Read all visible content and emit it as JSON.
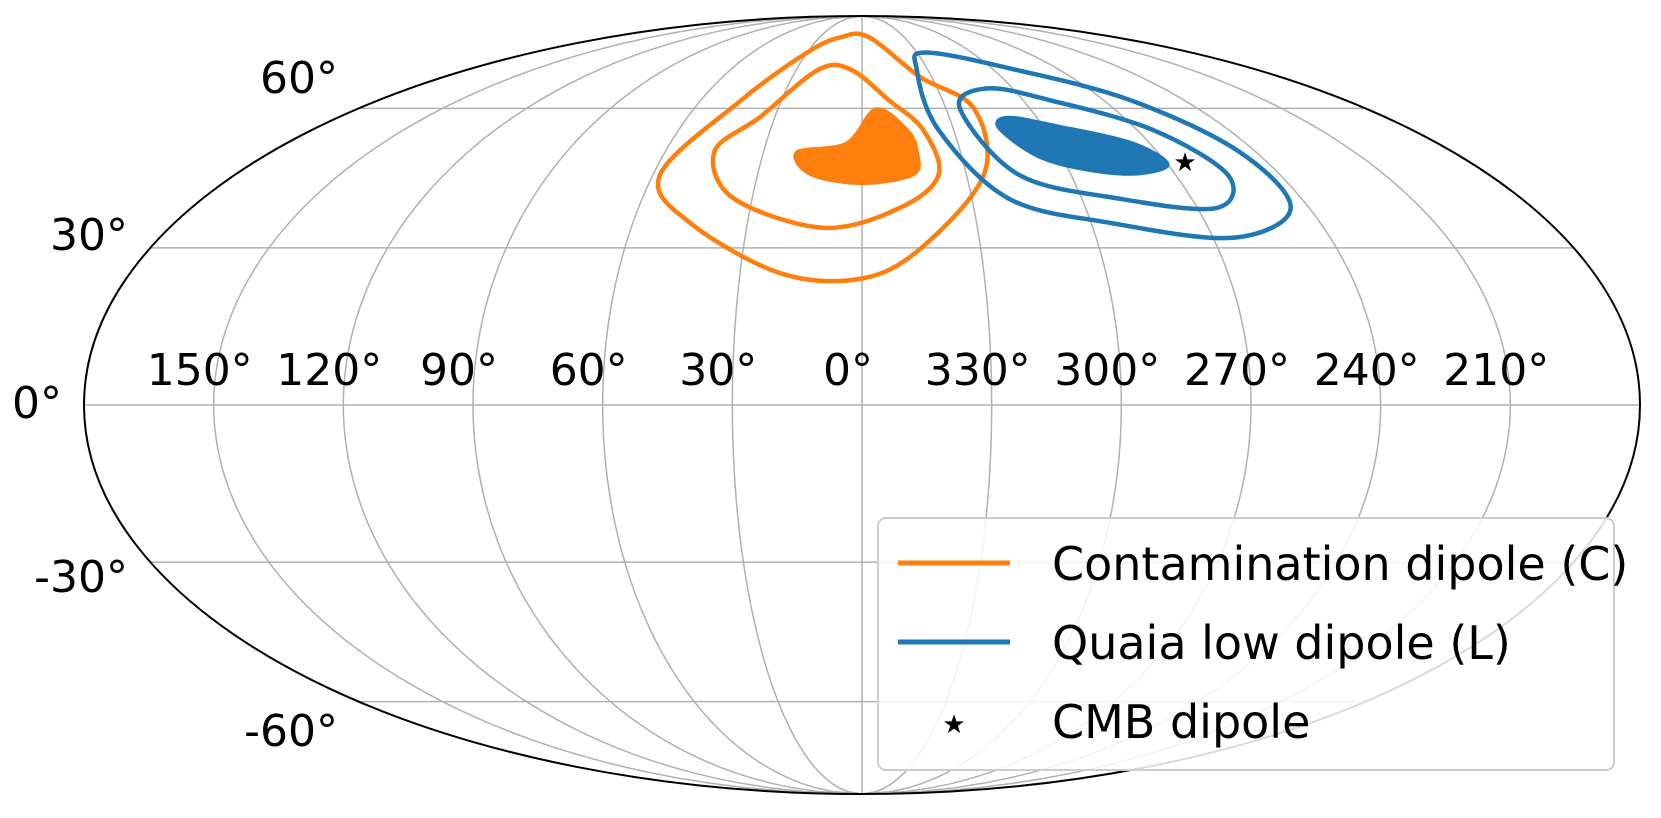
{
  "chart_data": {
    "type": "contour-skymap",
    "projection": "mollweide",
    "title": "",
    "xlabel": "",
    "ylabel": "",
    "grid": true,
    "lon_ticks": [
      "150°",
      "120°",
      "90°",
      "60°",
      "30°",
      "0°",
      "330°",
      "300°",
      "270°",
      "240°",
      "210°"
    ],
    "lat_ticks": [
      "60°",
      "30°",
      "0°",
      "-30°",
      "-60°"
    ],
    "legend_position": "lower-right",
    "series": [
      {
        "name": "Contamination dipole (C)",
        "color": "#ff7f0e",
        "kind": "contour",
        "core_lonlat": [
          [
            355,
            60
          ],
          [
            345,
            55
          ],
          [
            343,
            50
          ],
          [
            345,
            45
          ],
          [
            0,
            43
          ],
          [
            15,
            45
          ],
          [
            20,
            50
          ],
          [
            5,
            52
          ],
          [
            355,
            60
          ]
        ],
        "inner_lonlat": [
          [
            20,
            70
          ],
          [
            5,
            70
          ],
          [
            350,
            62
          ],
          [
            340,
            55
          ],
          [
            338,
            45
          ],
          [
            350,
            38
          ],
          [
            10,
            34
          ],
          [
            35,
            40
          ],
          [
            45,
            50
          ],
          [
            35,
            58
          ],
          [
            20,
            70
          ]
        ],
        "outer_lonlat": [
          [
            15,
            80
          ],
          [
            355,
            80
          ],
          [
            335,
            68
          ],
          [
            320,
            60
          ],
          [
            325,
            45
          ],
          [
            345,
            30
          ],
          [
            0,
            24
          ],
          [
            20,
            25
          ],
          [
            45,
            35
          ],
          [
            58,
            45
          ],
          [
            45,
            62
          ],
          [
            30,
            75
          ],
          [
            15,
            80
          ]
        ]
      },
      {
        "name": "Quaia low dipole (L)",
        "color": "#1f77b4",
        "kind": "contour",
        "core_lonlat": [
          [
            310,
            58
          ],
          [
            295,
            56
          ],
          [
            275,
            52
          ],
          [
            270,
            47
          ],
          [
            285,
            45
          ],
          [
            305,
            48
          ],
          [
            315,
            55
          ],
          [
            310,
            58
          ]
        ],
        "inner_lonlat": [
          [
            310,
            65
          ],
          [
            290,
            62
          ],
          [
            265,
            55
          ],
          [
            255,
            45
          ],
          [
            265,
            38
          ],
          [
            290,
            40
          ],
          [
            315,
            45
          ],
          [
            325,
            60
          ],
          [
            310,
            65
          ]
        ],
        "outer_lonlat": [
          [
            325,
            75
          ],
          [
            290,
            70
          ],
          [
            260,
            62
          ],
          [
            245,
            50
          ],
          [
            245,
            38
          ],
          [
            265,
            32
          ],
          [
            295,
            35
          ],
          [
            320,
            40
          ],
          [
            335,
            55
          ],
          [
            335,
            70
          ],
          [
            325,
            75
          ]
        ]
      },
      {
        "name": "CMB dipole",
        "color": "#000000",
        "kind": "point",
        "lon": 264,
        "lat": 48
      }
    ]
  }
}
